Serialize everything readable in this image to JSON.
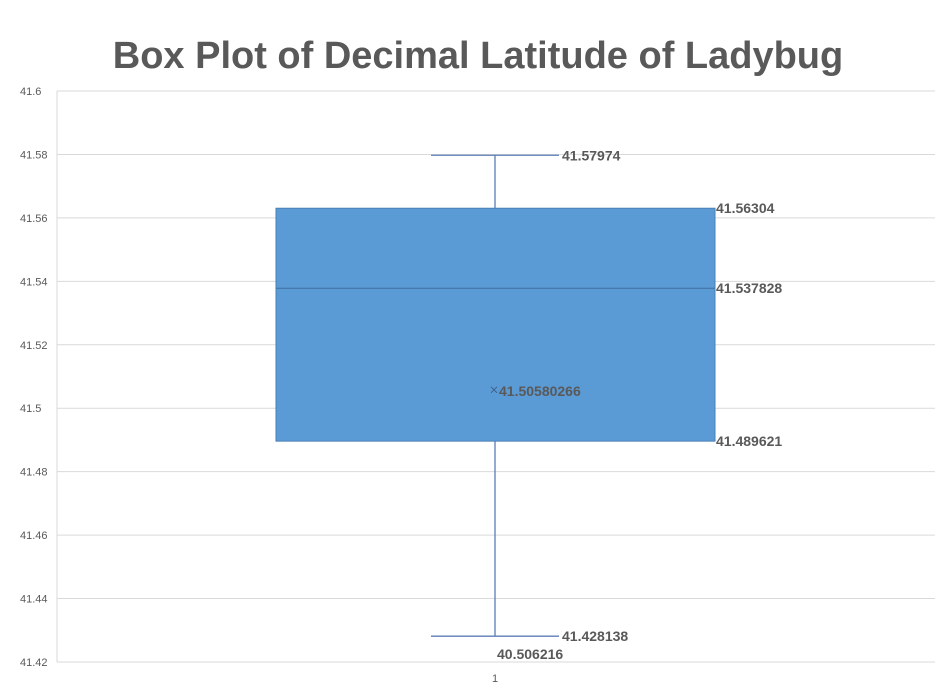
{
  "chart_data": {
    "type": "box",
    "title": "Box Plot of Decimal Latitude of Ladybug",
    "xlabel": "",
    "ylabel": "",
    "categories": [
      "1"
    ],
    "ylim": [
      41.42,
      41.6
    ],
    "yticks": [
      "41.42",
      "41.44",
      "41.46",
      "41.48",
      "41.5",
      "41.52",
      "41.54",
      "41.56",
      "41.58",
      "41.6"
    ],
    "grid": true,
    "box": {
      "whisker_max": 41.57974,
      "q3": 41.56304,
      "median": 41.537828,
      "mean": 41.50580266,
      "q1": 41.489621,
      "whisker_min": 41.428138,
      "outlier": 40.506216
    },
    "labels": {
      "whisker_max": "41.57974",
      "q3": "41.56304",
      "median": "41.537828",
      "mean": "41.50580266",
      "q1": "41.489621",
      "whisker_min": "41.428138",
      "outlier": "40.506216"
    },
    "colors": {
      "box_fill": "#5b9bd5",
      "box_stroke": "#4a7fb5",
      "text": "#595959",
      "grid": "#d9d9d9"
    }
  }
}
